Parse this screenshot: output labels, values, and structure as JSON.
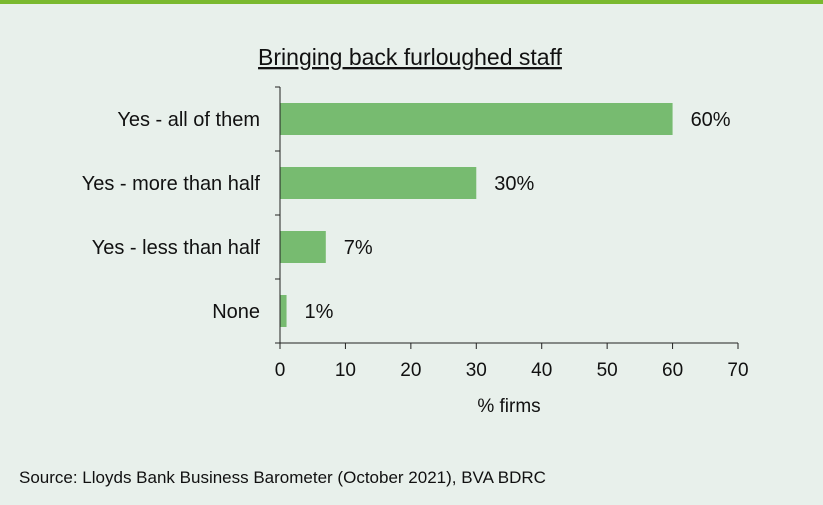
{
  "chart_data": {
    "type": "bar",
    "orientation": "horizontal",
    "title": "Bringing back furloughed staff",
    "categories": [
      "Yes - all of them",
      "Yes - more than half",
      "Yes - less than half",
      "None"
    ],
    "values": [
      60,
      30,
      7,
      1
    ],
    "value_labels": [
      "60%",
      "30%",
      "7%",
      "1%"
    ],
    "xlabel": "% firms",
    "xlim": [
      0,
      70
    ],
    "xticks": [
      0,
      10,
      20,
      30,
      40,
      50,
      60,
      70
    ],
    "grid": false,
    "legend": "none",
    "bar_color": "#77bb70",
    "accent_color": "#7ab92f",
    "background_color": "#e8f0eb"
  },
  "source": "Source: Lloyds Bank Business Barometer (October 2021), BVA BDRC"
}
